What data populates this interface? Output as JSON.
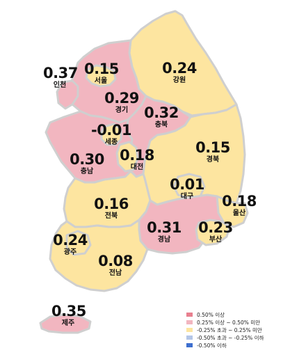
{
  "colors": {
    "ge_050": "#e8808f",
    "range_025_050": "#f2b6c0",
    "range_m025_025": "#fde5a0",
    "range_m050_m025": "#b4c6e7",
    "le_m050": "#3e6fcf"
  },
  "regions": {
    "incheon": {
      "name": "인천",
      "value": "0.37",
      "class": "range_025_050"
    },
    "seoul": {
      "name": "서울",
      "value": "0.15",
      "class": "range_m025_025"
    },
    "gyeonggi": {
      "name": "경기",
      "value": "0.29",
      "class": "range_025_050"
    },
    "gangwon": {
      "name": "강원",
      "value": "0.24",
      "class": "range_m025_025"
    },
    "chungbuk": {
      "name": "충북",
      "value": "0.32",
      "class": "range_025_050"
    },
    "sejong": {
      "name": "세종",
      "value": "-0.01",
      "class": "range_m025_025"
    },
    "chungnam": {
      "name": "충남",
      "value": "0.30",
      "class": "range_025_050"
    },
    "daejeon": {
      "name": "대전",
      "value": "0.18",
      "class": "range_m025_025"
    },
    "gyeongbuk": {
      "name": "경북",
      "value": "0.15",
      "class": "range_m025_025"
    },
    "jeonbuk": {
      "name": "전북",
      "value": "0.16",
      "class": "range_m025_025"
    },
    "daegu": {
      "name": "대구",
      "value": "0.01",
      "class": "range_m025_025"
    },
    "ulsan": {
      "name": "울산",
      "value": "0.18",
      "class": "range_m025_025"
    },
    "gwangju": {
      "name": "광주",
      "value": "0.24",
      "class": "range_m025_025"
    },
    "gyeongnam": {
      "name": "경남",
      "value": "0.31",
      "class": "range_025_050"
    },
    "busan": {
      "name": "부산",
      "value": "0.23",
      "class": "range_m025_025"
    },
    "jeonnam": {
      "name": "전남",
      "value": "0.08",
      "class": "range_m025_025"
    },
    "jeju": {
      "name": "제주",
      "value": "0.35",
      "class": "range_025_050"
    }
  },
  "legend": [
    {
      "label": "0.50% 이상",
      "class": "ge_050"
    },
    {
      "label": "0.25% 이상 ~ 0.50% 미만",
      "class": "range_025_050"
    },
    {
      "label": "-0.25% 초과 ~ 0.25% 미만",
      "class": "range_m025_025"
    },
    {
      "label": "-0.50% 초과 ~ -0.25% 이하",
      "class": "range_m050_m025"
    },
    {
      "label": "-0.50% 이하",
      "class": "le_m050"
    }
  ]
}
